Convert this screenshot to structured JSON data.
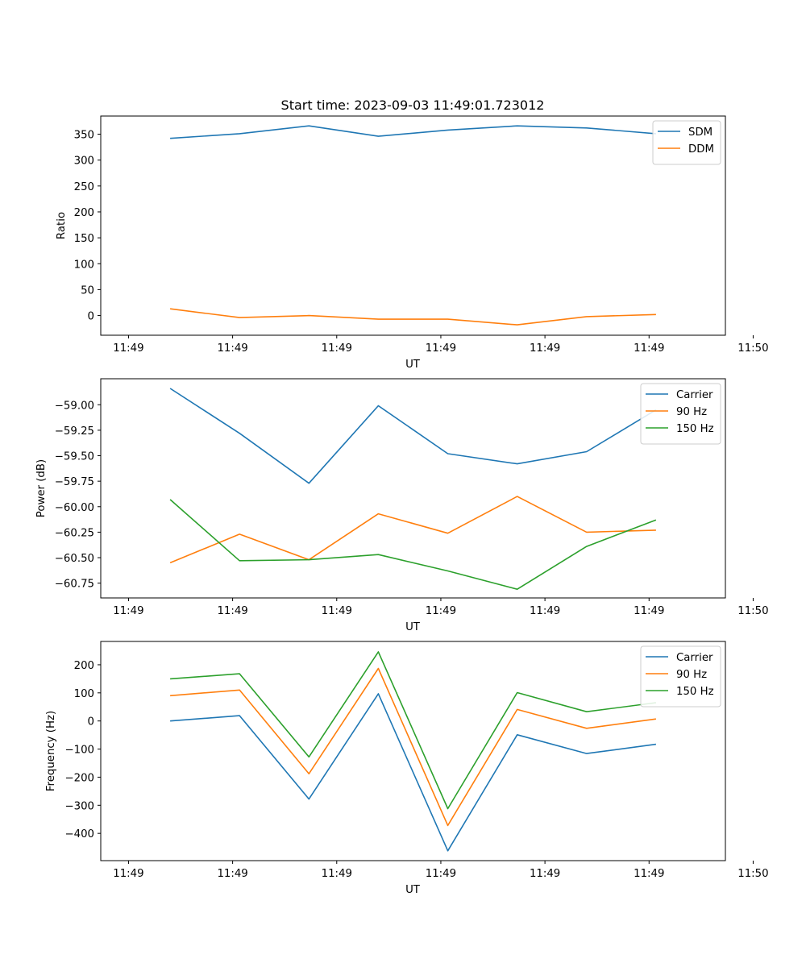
{
  "figure_title": "Start time: 2023-09-03 11:49:01.723012",
  "chart_data": [
    {
      "type": "line",
      "title": "Start time: 2023-09-03 11:49:01.723012",
      "xlabel": "UT",
      "ylabel": "Ratio",
      "xlim": [
        0,
        9
      ],
      "x": [
        1,
        2,
        3,
        4,
        5,
        6,
        7,
        8
      ],
      "x_ticks": [
        {
          "value": 0.4,
          "label": "11:49"
        },
        {
          "value": 1.9,
          "label": "11:49"
        },
        {
          "value": 3.4,
          "label": "11:49"
        },
        {
          "value": 4.9,
          "label": "11:49"
        },
        {
          "value": 6.4,
          "label": "11:49"
        },
        {
          "value": 7.9,
          "label": "11:49"
        },
        {
          "value": 9.4,
          "label": "11:50"
        }
      ],
      "ylim": [
        -38,
        385
      ],
      "y_ticks": [
        0,
        50,
        100,
        150,
        200,
        250,
        300,
        350
      ],
      "y_tick_labels": [
        "0",
        "50",
        "100",
        "150",
        "200",
        "250",
        "300",
        "350"
      ],
      "legend_position": "top-right",
      "series": [
        {
          "name": "SDM",
          "color": "#1f77b4",
          "values": [
            342,
            351,
            366,
            346,
            358,
            366,
            362,
            351
          ]
        },
        {
          "name": "DDM",
          "color": "#ff7f0e",
          "values": [
            13,
            -4,
            0,
            -7,
            -7,
            -18,
            -2,
            2
          ]
        }
      ]
    },
    {
      "type": "line",
      "title": "",
      "xlabel": "UT",
      "ylabel": "Power (dB)",
      "xlim": [
        0,
        9
      ],
      "x": [
        1,
        2,
        3,
        4,
        5,
        6,
        7,
        8
      ],
      "x_ticks": [
        {
          "value": 0.4,
          "label": "11:49"
        },
        {
          "value": 1.9,
          "label": "11:49"
        },
        {
          "value": 3.4,
          "label": "11:49"
        },
        {
          "value": 4.9,
          "label": "11:49"
        },
        {
          "value": 6.4,
          "label": "11:49"
        },
        {
          "value": 7.9,
          "label": "11:49"
        },
        {
          "value": 9.4,
          "label": "11:50"
        }
      ],
      "ylim": [
        -60.895,
        -58.745
      ],
      "y_ticks": [
        -59.0,
        -59.25,
        -59.5,
        -59.75,
        -60.0,
        -60.25,
        -60.5,
        -60.75
      ],
      "y_tick_labels": [
        "−59.00",
        "−59.25",
        "−59.50",
        "−59.75",
        "−60.00",
        "−60.25",
        "−60.50",
        "−60.75"
      ],
      "legend_position": "top-right",
      "series": [
        {
          "name": "Carrier",
          "color": "#1f77b4",
          "values": [
            -58.84,
            -59.28,
            -59.77,
            -59.01,
            -59.48,
            -59.58,
            -59.46,
            -59.05
          ]
        },
        {
          "name": "90 Hz",
          "color": "#ff7f0e",
          "values": [
            -60.55,
            -60.27,
            -60.52,
            -60.07,
            -60.26,
            -59.9,
            -60.25,
            -60.23
          ]
        },
        {
          "name": "150 Hz",
          "color": "#2ca02c",
          "values": [
            -59.93,
            -60.53,
            -60.52,
            -60.47,
            -60.63,
            -60.81,
            -60.39,
            -60.13
          ]
        }
      ]
    },
    {
      "type": "line",
      "title": "",
      "xlabel": "UT",
      "ylabel": "Frequency (Hz)",
      "xlim": [
        0,
        9
      ],
      "x": [
        1,
        2,
        3,
        4,
        5,
        6,
        7,
        8
      ],
      "x_ticks": [
        {
          "value": 0.4,
          "label": "11:49"
        },
        {
          "value": 1.9,
          "label": "11:49"
        },
        {
          "value": 3.4,
          "label": "11:49"
        },
        {
          "value": 4.9,
          "label": "11:49"
        },
        {
          "value": 6.4,
          "label": "11:49"
        },
        {
          "value": 7.9,
          "label": "11:49"
        },
        {
          "value": 9.4,
          "label": "11:50"
        }
      ],
      "ylim": [
        -497,
        283
      ],
      "y_ticks": [
        -400,
        -300,
        -200,
        -100,
        0,
        100,
        200
      ],
      "y_tick_labels": [
        "−400",
        "−300",
        "−200",
        "−100",
        "0",
        "100",
        "200"
      ],
      "legend_position": "top-right",
      "series": [
        {
          "name": "Carrier",
          "color": "#1f77b4",
          "values": [
            0,
            19,
            -278,
            97,
            -462,
            -49,
            -116,
            -83
          ]
        },
        {
          "name": "90 Hz",
          "color": "#ff7f0e",
          "values": [
            90,
            110,
            -188,
            187,
            -372,
            41,
            -26,
            7
          ]
        },
        {
          "name": "150 Hz",
          "color": "#2ca02c",
          "values": [
            150,
            168,
            -128,
            246,
            -312,
            101,
            33,
            65
          ]
        }
      ]
    }
  ]
}
